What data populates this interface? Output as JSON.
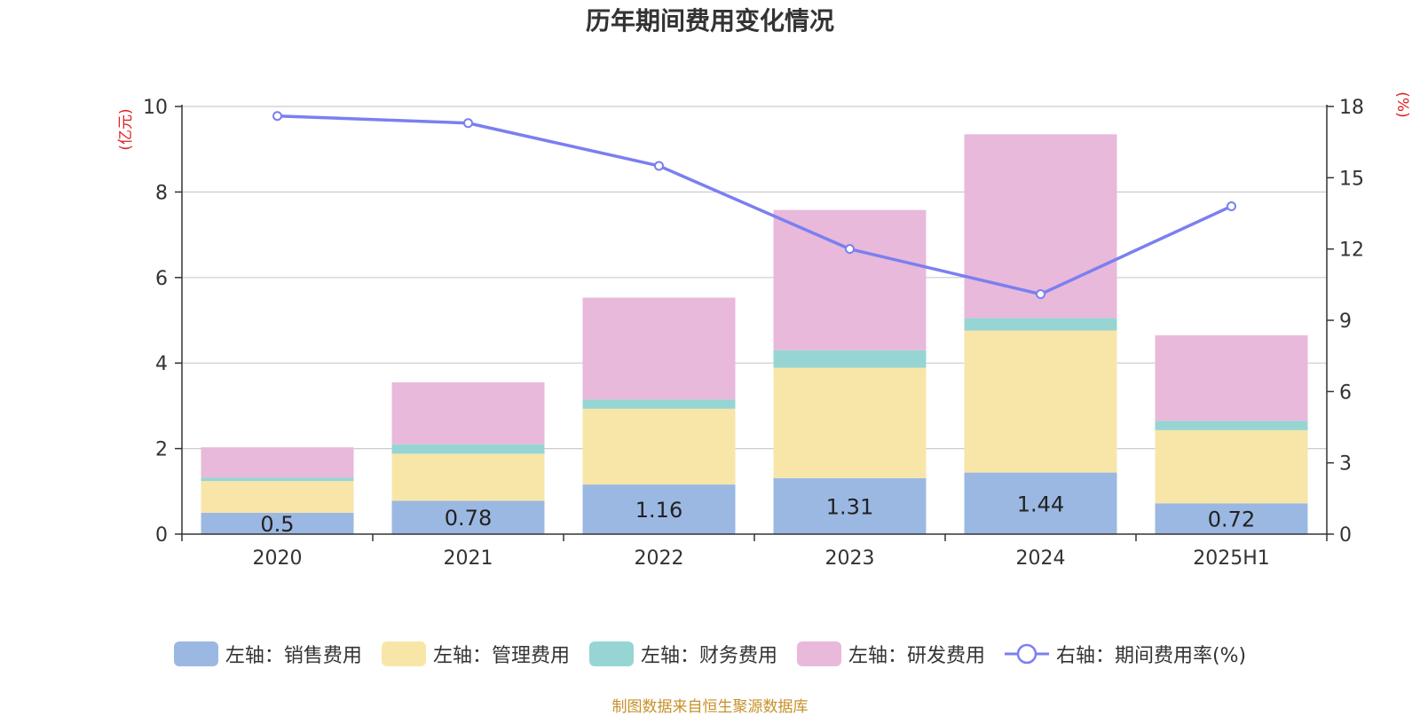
{
  "chart_data": {
    "type": "bar",
    "title": "历年期间费用变化情况",
    "source": "制图数据来自恒生聚源数据库",
    "categories": [
      "2020",
      "2021",
      "2022",
      "2023",
      "2024",
      "2025H1"
    ],
    "left_axis": {
      "label": "(亿元)",
      "ylim": [
        0,
        10
      ],
      "ticks": [
        "0",
        "2",
        "4",
        "6",
        "8",
        "10"
      ]
    },
    "right_axis": {
      "label": "(%)",
      "ylim": [
        0,
        18
      ],
      "ticks": [
        "0",
        "3",
        "6",
        "9",
        "12",
        "15",
        "18"
      ]
    },
    "grid": true,
    "legend_position": "bottom",
    "series": [
      {
        "name": "左轴：销售费用",
        "type": "bar",
        "stack": true,
        "color": "#9bb8e2",
        "values": [
          0.5,
          0.78,
          1.16,
          1.31,
          1.44,
          0.72
        ],
        "labels": [
          "0.5",
          "0.78",
          "1.16",
          "1.31",
          "1.44",
          "0.72"
        ]
      },
      {
        "name": "左轴：管理费用",
        "type": "bar",
        "stack": true,
        "color": "#f8e6a8",
        "values": [
          0.74,
          1.1,
          1.77,
          2.58,
          3.32,
          1.71
        ]
      },
      {
        "name": "左轴：财务费用",
        "type": "bar",
        "stack": true,
        "color": "#96d5d3",
        "values": [
          0.08,
          0.22,
          0.22,
          0.41,
          0.29,
          0.22
        ]
      },
      {
        "name": "左轴：研发费用",
        "type": "bar",
        "stack": true,
        "color": "#e8b9da",
        "values": [
          0.71,
          1.45,
          2.38,
          3.28,
          4.3,
          2.0
        ]
      },
      {
        "name": "右轴：期间费用率(%)",
        "type": "line",
        "axis": "right",
        "color": "#7b7ff0",
        "values": [
          17.6,
          17.3,
          15.5,
          12.0,
          10.1,
          13.8
        ]
      }
    ]
  }
}
